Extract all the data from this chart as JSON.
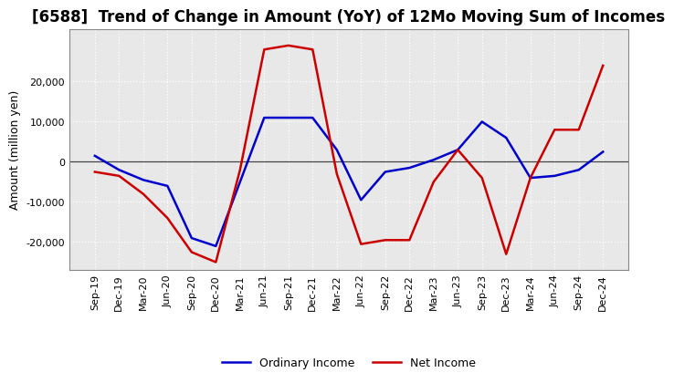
{
  "title": "[6588]  Trend of Change in Amount (YoY) of 12Mo Moving Sum of Incomes",
  "ylabel": "Amount (million yen)",
  "xlabels": [
    "Sep-19",
    "Dec-19",
    "Mar-20",
    "Jun-20",
    "Sep-20",
    "Dec-20",
    "Mar-21",
    "Jun-21",
    "Sep-21",
    "Dec-21",
    "Mar-22",
    "Jun-22",
    "Sep-22",
    "Dec-22",
    "Mar-23",
    "Jun-23",
    "Sep-23",
    "Dec-23",
    "Mar-24",
    "Jun-24",
    "Sep-24",
    "Dec-24"
  ],
  "ordinary_income": [
    1500,
    -2000,
    -4500,
    -6000,
    -19000,
    -21000,
    -5000,
    11000,
    11000,
    11000,
    3000,
    -9500,
    -2500,
    -1500,
    500,
    3000,
    10000,
    6000,
    -4000,
    -3500,
    -2000,
    2500
  ],
  "net_income": [
    -2500,
    -3500,
    -8000,
    -14000,
    -22500,
    -25000,
    -2000,
    28000,
    29000,
    28000,
    -3000,
    -20500,
    -19500,
    -19500,
    -5000,
    3000,
    -4000,
    -23000,
    -4000,
    8000,
    8000,
    24000
  ],
  "ordinary_income_color": "#0000cc",
  "net_income_color": "#cc0000",
  "ylim": [
    -27000,
    33000
  ],
  "yticks": [
    -20000,
    -10000,
    0,
    10000,
    20000
  ],
  "plot_bg_color": "#e8e8e8",
  "fig_bg_color": "#ffffff",
  "grid_color": "#ffffff",
  "legend_ordinary": "Ordinary Income",
  "legend_net": "Net Income",
  "line_width": 1.8,
  "title_fontsize": 12,
  "ylabel_fontsize": 9,
  "tick_fontsize": 8,
  "legend_fontsize": 9
}
